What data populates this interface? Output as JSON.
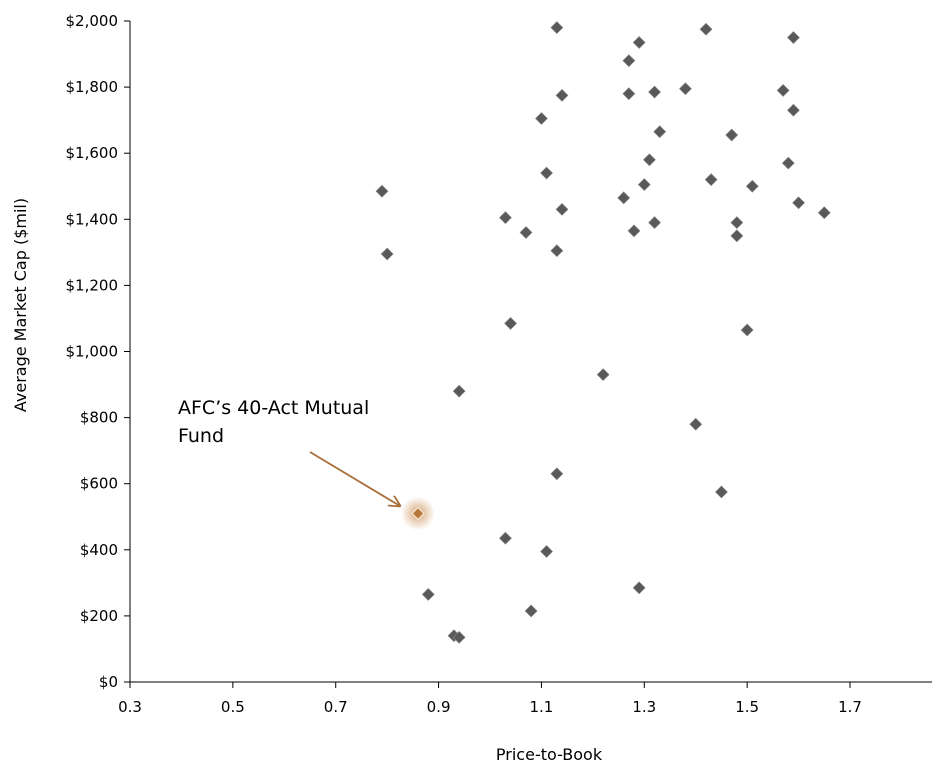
{
  "chart_data": {
    "type": "scatter",
    "xlabel": "Price-to-Book",
    "ylabel": "Average Market Cap ($mil)",
    "xlim": [
      0.3,
      1.85
    ],
    "ylim": [
      0,
      2000
    ],
    "x_ticks": [
      "0.3",
      "0.5",
      "0.7",
      "0.9",
      "1.1",
      "1.3",
      "1.5",
      "1.7"
    ],
    "y_ticks": [
      "$0",
      "$200",
      "$400",
      "$600",
      "$800",
      "$1,000",
      "$1,200",
      "$1,400",
      "$1,600",
      "$1,800",
      "$2,000"
    ],
    "grid": false,
    "series": [
      {
        "color": "#595959",
        "points": [
          [
            0.79,
            1485
          ],
          [
            0.8,
            1295
          ],
          [
            0.88,
            265
          ],
          [
            0.93,
            140
          ],
          [
            0.94,
            135
          ],
          [
            0.94,
            880
          ],
          [
            1.03,
            435
          ],
          [
            1.03,
            1405
          ],
          [
            1.04,
            1085
          ],
          [
            1.07,
            1360
          ],
          [
            1.08,
            215
          ],
          [
            1.1,
            1705
          ],
          [
            1.11,
            395
          ],
          [
            1.11,
            1540
          ],
          [
            1.13,
            1980
          ],
          [
            1.13,
            1305
          ],
          [
            1.13,
            630
          ],
          [
            1.14,
            1775
          ],
          [
            1.14,
            1430
          ],
          [
            1.22,
            930
          ],
          [
            1.26,
            1465
          ],
          [
            1.27,
            1880
          ],
          [
            1.27,
            1780
          ],
          [
            1.28,
            1365
          ],
          [
            1.29,
            1935
          ],
          [
            1.29,
            285
          ],
          [
            1.3,
            1505
          ],
          [
            1.31,
            1580
          ],
          [
            1.32,
            1785
          ],
          [
            1.32,
            1390
          ],
          [
            1.33,
            1665
          ],
          [
            1.38,
            1795
          ],
          [
            1.4,
            780
          ],
          [
            1.42,
            1975
          ],
          [
            1.43,
            1520
          ],
          [
            1.45,
            575
          ],
          [
            1.47,
            1655
          ],
          [
            1.48,
            1390
          ],
          [
            1.48,
            1350
          ],
          [
            1.5,
            1065
          ],
          [
            1.51,
            1500
          ],
          [
            1.57,
            1790
          ],
          [
            1.58,
            1570
          ],
          [
            1.59,
            1950
          ],
          [
            1.59,
            1730
          ],
          [
            1.6,
            1450
          ],
          [
            1.65,
            1420
          ]
        ]
      },
      {
        "color": "#B5773A",
        "points": [
          [
            0.86,
            510
          ]
        ]
      }
    ],
    "annotations": [
      {
        "text_line1": "AFC’s 40-Act Mutual",
        "text_line2": "Fund",
        "point": [
          0.86,
          510
        ],
        "color": "#A86E3A"
      }
    ]
  }
}
